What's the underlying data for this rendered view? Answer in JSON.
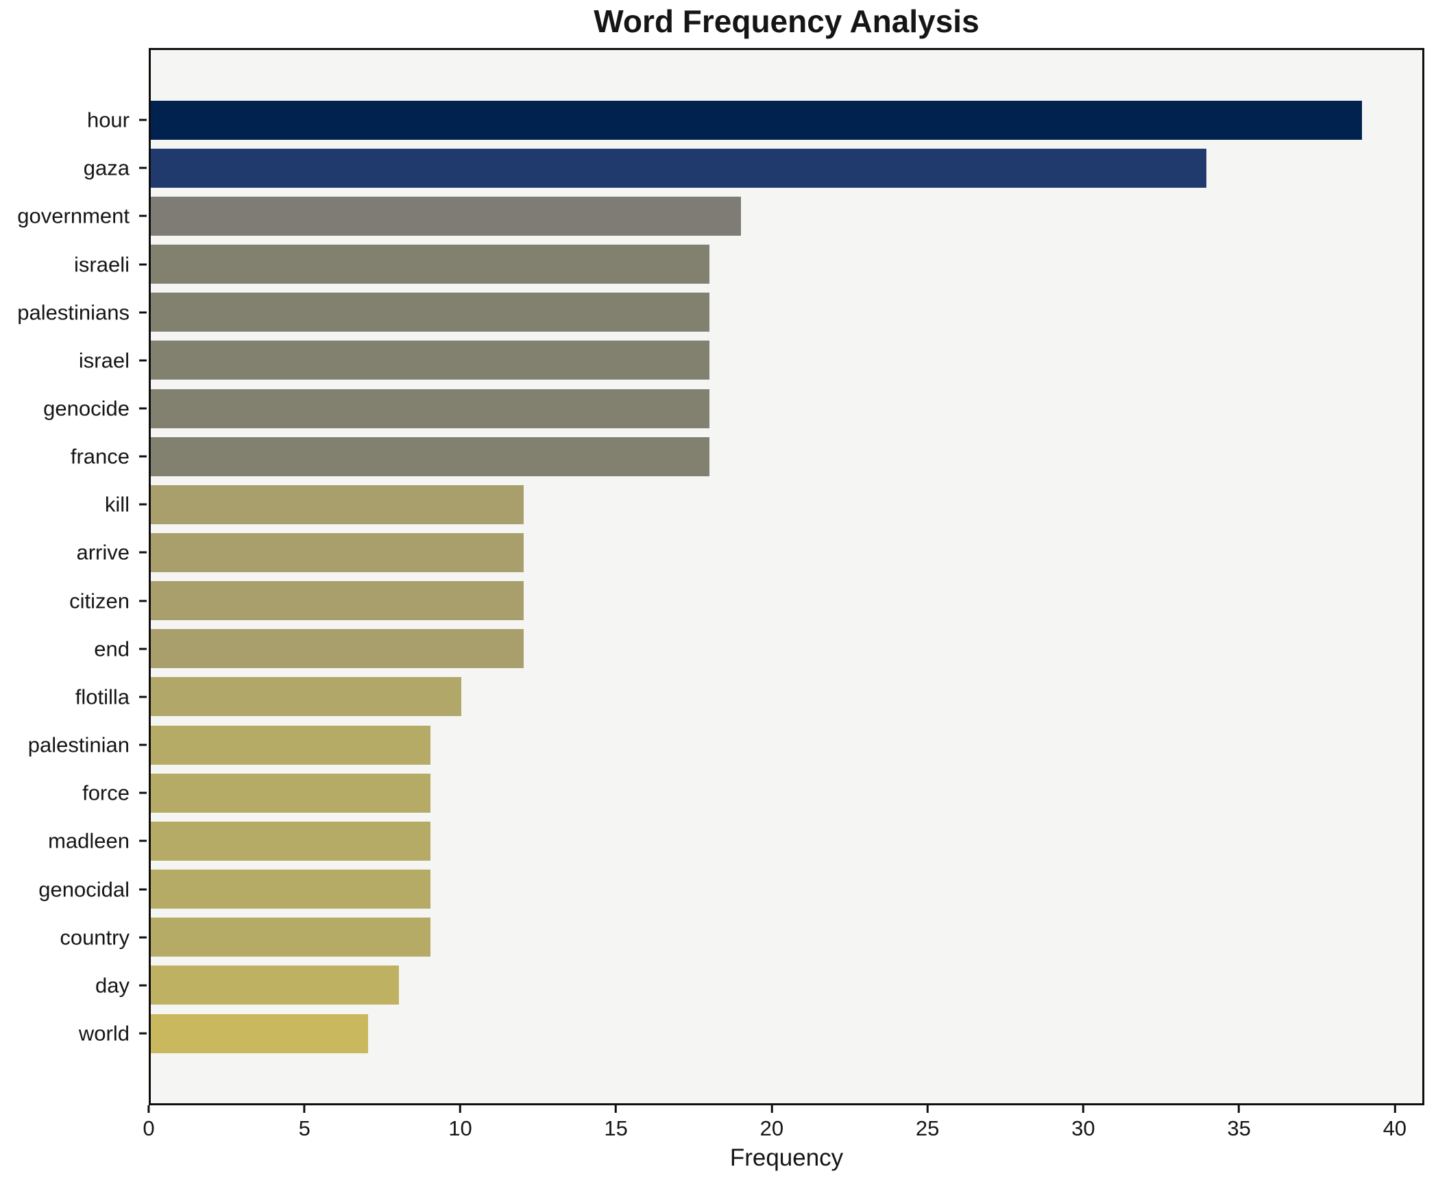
{
  "chart_data": {
    "type": "bar",
    "orientation": "horizontal",
    "title": "Word Frequency Analysis",
    "xlabel": "Frequency",
    "ylabel": "",
    "categories": [
      "hour",
      "gaza",
      "government",
      "israeli",
      "palestinians",
      "israel",
      "genocide",
      "france",
      "kill",
      "arrive",
      "citizen",
      "end",
      "flotilla",
      "palestinian",
      "force",
      "madleen",
      "genocidal",
      "country",
      "day",
      "world"
    ],
    "values": [
      39,
      34,
      19,
      18,
      18,
      18,
      18,
      18,
      12,
      12,
      12,
      12,
      10,
      9,
      9,
      9,
      9,
      9,
      8,
      7
    ],
    "bar_colors": [
      "#01224e",
      "#203a6d",
      "#7e7c75",
      "#82806f",
      "#82806f",
      "#82806f",
      "#82806f",
      "#82806f",
      "#a89f6d",
      "#a89f6d",
      "#a89f6d",
      "#a89f6d",
      "#b0a769",
      "#b5ab66",
      "#b5ab66",
      "#b5ab66",
      "#b5ab66",
      "#b5ab66",
      "#bfb162",
      "#c9b85e"
    ],
    "xticks": [
      0,
      5,
      10,
      15,
      20,
      25,
      30,
      35,
      40
    ],
    "xlim": [
      0,
      40.95
    ],
    "grid": false,
    "legend": false,
    "plot_background": "#f5f5f3",
    "figure_background": "#ffffff",
    "spine_color": "#0f0f0f",
    "text_color": "#151515"
  }
}
